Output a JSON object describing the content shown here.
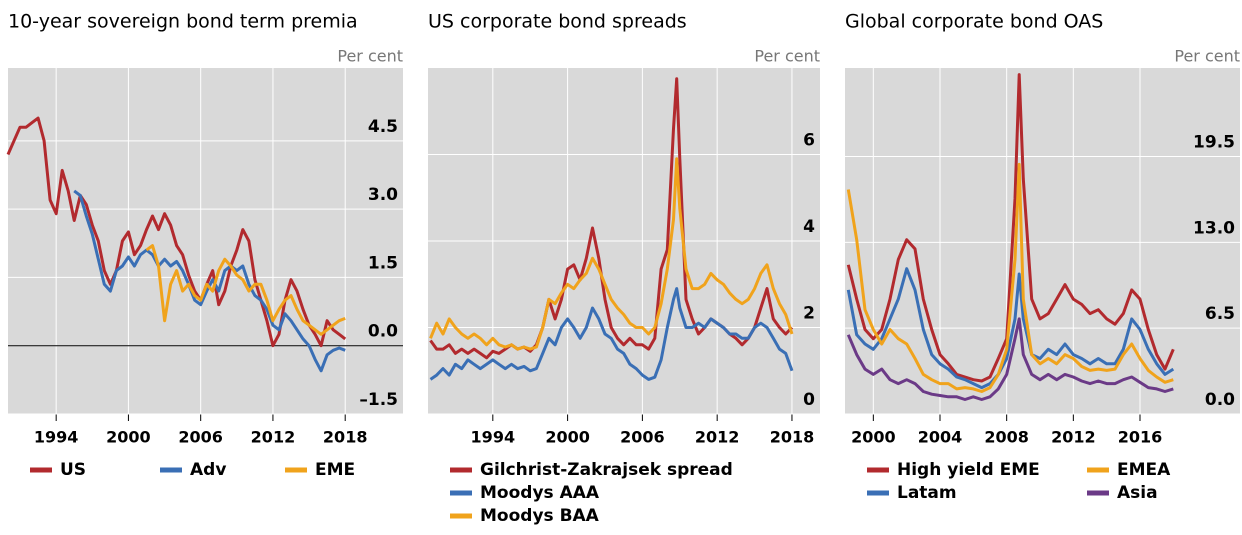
{
  "chart_data": [
    {
      "type": "line",
      "title": "10-year sovereign bond term premia",
      "unit": "Per cent",
      "x": [
        1990,
        1990.5,
        1991,
        1991.5,
        1992,
        1992.5,
        1993,
        1993.5,
        1994,
        1994.5,
        1995,
        1995.5,
        1996,
        1996.5,
        1997,
        1997.5,
        1998,
        1998.5,
        1999,
        1999.5,
        2000,
        2000.5,
        2001,
        2001.5,
        2002,
        2002.5,
        2003,
        2003.5,
        2004,
        2004.5,
        2005,
        2005.5,
        2006,
        2006.5,
        2007,
        2007.5,
        2008,
        2008.5,
        2009,
        2009.5,
        2010,
        2010.5,
        2011,
        2011.5,
        2012,
        2012.5,
        2013,
        2013.5,
        2014,
        2014.5,
        2015,
        2015.5,
        2016,
        2016.5,
        2017,
        2017.5,
        2018
      ],
      "series": [
        {
          "name": "US",
          "color": "#b22a2e",
          "values": [
            4.2,
            4.5,
            4.8,
            4.8,
            4.9,
            5.0,
            4.5,
            3.2,
            2.9,
            3.85,
            3.4,
            2.75,
            3.3,
            3.1,
            2.65,
            2.3,
            1.65,
            1.35,
            1.65,
            2.3,
            2.5,
            2.0,
            2.2,
            2.55,
            2.85,
            2.55,
            2.9,
            2.65,
            2.2,
            2.0,
            1.55,
            1.2,
            1.0,
            1.35,
            1.65,
            0.9,
            1.2,
            1.75,
            2.1,
            2.55,
            2.3,
            1.45,
            1.0,
            0.55,
            0.0,
            0.25,
            1.0,
            1.45,
            1.2,
            0.8,
            0.45,
            0.25,
            0.0,
            0.55,
            0.35,
            0.25,
            0.15
          ]
        },
        {
          "name": "Adv",
          "color": "#3a6fb5",
          "values": [
            null,
            null,
            null,
            null,
            null,
            null,
            null,
            null,
            null,
            null,
            null,
            3.4,
            3.3,
            2.85,
            2.45,
            1.9,
            1.35,
            1.2,
            1.65,
            1.75,
            1.95,
            1.75,
            2.0,
            2.1,
            2.0,
            1.75,
            1.9,
            1.75,
            1.85,
            1.65,
            1.35,
            1.0,
            0.9,
            1.2,
            1.45,
            1.2,
            1.65,
            1.75,
            1.65,
            1.75,
            1.35,
            1.1,
            1.0,
            0.8,
            0.45,
            0.35,
            0.7,
            0.55,
            0.35,
            0.15,
            0.0,
            -0.3,
            -0.55,
            -0.2,
            -0.1,
            -0.05,
            -0.1
          ]
        },
        {
          "name": "EME",
          "color": "#f0a31c",
          "values": [
            null,
            null,
            null,
            null,
            null,
            null,
            null,
            null,
            null,
            null,
            null,
            null,
            null,
            null,
            null,
            null,
            null,
            null,
            null,
            null,
            null,
            null,
            null,
            2.1,
            2.2,
            1.75,
            0.55,
            1.35,
            1.65,
            1.2,
            1.35,
            1.1,
            1.0,
            1.35,
            1.2,
            1.65,
            1.9,
            1.75,
            1.55,
            1.45,
            1.2,
            1.35,
            1.35,
            1.0,
            0.55,
            0.8,
            1.0,
            1.1,
            0.8,
            0.55,
            0.45,
            0.35,
            0.25,
            0.35,
            0.45,
            0.55,
            0.6
          ]
        }
      ],
      "xlim": [
        1990,
        2022.8
      ],
      "xticks": [
        1994,
        2000,
        2006,
        2012,
        2018
      ],
      "ylim": [
        -1.5,
        6.1
      ],
      "yticks": [
        {
          "value": -1.5,
          "label": "–1.5"
        },
        {
          "value": 0,
          "label": "0.0"
        },
        1.5,
        {
          "value": 3,
          "label": "3.0"
        },
        4.5
      ],
      "grid": true,
      "zero_line": true
    },
    {
      "type": "line",
      "title": "US corporate bond spreads",
      "unit": "Per cent",
      "x": [
        1989,
        1989.5,
        1990,
        1990.5,
        1991,
        1991.5,
        1992,
        1992.5,
        1993,
        1993.5,
        1994,
        1994.5,
        1995,
        1995.5,
        1996,
        1996.5,
        1997,
        1997.5,
        1998,
        1998.5,
        1999,
        1999.5,
        2000,
        2000.5,
        2001,
        2001.5,
        2002,
        2002.5,
        2003,
        2003.5,
        2004,
        2004.5,
        2005,
        2005.5,
        2006,
        2006.5,
        2007,
        2007.5,
        2008,
        2008.5,
        2008.75,
        2009,
        2009.5,
        2010,
        2010.5,
        2011,
        2011.5,
        2012,
        2012.5,
        2013,
        2013.5,
        2014,
        2014.5,
        2015,
        2015.5,
        2016,
        2016.5,
        2017,
        2017.5,
        2018
      ],
      "series": [
        {
          "name": "Gilchrist-Zakrajsek spread",
          "color": "#b22a2e",
          "values": [
            1.7,
            1.5,
            1.5,
            1.6,
            1.4,
            1.5,
            1.4,
            1.5,
            1.4,
            1.3,
            1.45,
            1.4,
            1.5,
            1.6,
            1.5,
            1.55,
            1.45,
            1.6,
            2.0,
            2.65,
            2.2,
            2.65,
            3.35,
            3.45,
            3.1,
            3.6,
            4.3,
            3.6,
            2.65,
            2.0,
            1.75,
            1.6,
            1.75,
            1.6,
            1.6,
            1.5,
            1.75,
            3.35,
            3.8,
            6.6,
            7.75,
            5.9,
            2.65,
            2.2,
            1.85,
            2.0,
            2.2,
            2.1,
            2.0,
            1.85,
            1.75,
            1.6,
            1.75,
            2.0,
            2.45,
            2.9,
            2.2,
            2.0,
            1.85,
            2.0
          ]
        },
        {
          "name": "Moodys AAA",
          "color": "#3a6fb5",
          "values": [
            0.8,
            0.9,
            1.05,
            0.9,
            1.15,
            1.05,
            1.25,
            1.15,
            1.05,
            1.15,
            1.25,
            1.15,
            1.05,
            1.15,
            1.05,
            1.1,
            1.0,
            1.05,
            1.4,
            1.75,
            1.6,
            2.0,
            2.2,
            2.0,
            1.75,
            2.0,
            2.45,
            2.2,
            1.85,
            1.75,
            1.5,
            1.4,
            1.15,
            1.05,
            0.9,
            0.8,
            0.85,
            1.25,
            2.0,
            2.65,
            2.9,
            2.45,
            2.0,
            2.0,
            2.1,
            2.0,
            2.2,
            2.1,
            2.0,
            1.85,
            1.85,
            1.75,
            1.75,
            2.0,
            2.1,
            2.0,
            1.75,
            1.5,
            1.4,
            1.0
          ]
        },
        {
          "name": "Moodys BAA",
          "color": "#f0a31c",
          "values": [
            1.75,
            2.1,
            1.85,
            2.2,
            2.0,
            1.85,
            1.75,
            1.85,
            1.75,
            1.6,
            1.75,
            1.6,
            1.55,
            1.6,
            1.5,
            1.55,
            1.5,
            1.55,
            2.0,
            2.65,
            2.55,
            2.8,
            3.0,
            2.9,
            3.1,
            3.25,
            3.6,
            3.35,
            3.0,
            2.65,
            2.45,
            2.3,
            2.1,
            2.0,
            2.0,
            1.85,
            2.0,
            2.55,
            3.35,
            4.5,
            5.9,
            4.75,
            3.35,
            2.9,
            2.9,
            3.0,
            3.25,
            3.1,
            3.0,
            2.8,
            2.65,
            2.55,
            2.65,
            2.9,
            3.25,
            3.45,
            2.9,
            2.55,
            2.3,
            1.85
          ]
        }
      ],
      "xlim": [
        1988.8,
        2020.25
      ],
      "xticks": [
        1994,
        2000,
        2006,
        2012,
        2018
      ],
      "ylim": [
        0,
        8
      ],
      "yticks": [
        0,
        2,
        4,
        6
      ],
      "grid": true
    },
    {
      "type": "line",
      "title": "Global corporate bond OAS",
      "unit": "Per cent",
      "x": [
        1998.5,
        1999,
        1999.5,
        2000,
        2000.5,
        2001,
        2001.5,
        2002,
        2002.5,
        2003,
        2003.5,
        2004,
        2004.5,
        2005,
        2005.5,
        2006,
        2006.5,
        2007,
        2007.5,
        2008,
        2008.5,
        2008.75,
        2009,
        2009.5,
        2010,
        2010.5,
        2011,
        2011.5,
        2012,
        2012.5,
        2013,
        2013.5,
        2014,
        2014.5,
        2015,
        2015.5,
        2016,
        2016.5,
        2017,
        2017.5,
        2018
      ],
      "series": [
        {
          "name": "High yield EME",
          "color": "#b22a2e",
          "values": [
            11.3,
            8.7,
            6.4,
            5.7,
            6.4,
            8.7,
            11.7,
            13.2,
            12.5,
            8.7,
            6.4,
            4.5,
            3.8,
            3.0,
            2.8,
            2.6,
            2.5,
            2.8,
            4.2,
            5.7,
            16.3,
            25.7,
            17.8,
            8.7,
            7.2,
            7.6,
            8.7,
            9.8,
            8.7,
            8.3,
            7.6,
            7.9,
            7.2,
            6.8,
            7.6,
            9.4,
            8.7,
            6.4,
            4.5,
            3.4,
            4.9
          ]
        },
        {
          "name": "Latam",
          "color": "#3a6fb5",
          "values": [
            9.4,
            6.0,
            5.3,
            4.9,
            5.7,
            7.2,
            8.7,
            11.0,
            9.4,
            6.4,
            4.5,
            3.8,
            3.4,
            2.8,
            2.6,
            2.3,
            2.0,
            2.3,
            3.0,
            4.2,
            7.2,
            10.6,
            7.2,
            4.5,
            4.2,
            4.9,
            4.5,
            5.3,
            4.5,
            4.2,
            3.8,
            4.2,
            3.8,
            3.8,
            4.9,
            7.2,
            6.4,
            4.9,
            3.8,
            3.0,
            3.4
          ]
        },
        {
          "name": "EMEA",
          "color": "#f0a31c",
          "values": [
            17.0,
            13.2,
            7.9,
            6.4,
            5.3,
            6.4,
            5.7,
            5.3,
            4.2,
            3.0,
            2.6,
            2.3,
            2.3,
            1.9,
            2.0,
            1.9,
            1.7,
            2.0,
            3.0,
            4.9,
            11.7,
            18.9,
            8.7,
            4.5,
            3.8,
            4.2,
            3.8,
            4.5,
            4.2,
            3.6,
            3.3,
            3.4,
            3.3,
            3.4,
            4.5,
            5.3,
            4.2,
            3.3,
            2.8,
            2.4,
            2.6
          ]
        },
        {
          "name": "Asia",
          "color": "#6b3a87",
          "values": [
            6.0,
            4.5,
            3.4,
            3.0,
            3.4,
            2.6,
            2.3,
            2.6,
            2.3,
            1.7,
            1.5,
            1.4,
            1.3,
            1.3,
            1.1,
            1.3,
            1.1,
            1.3,
            1.9,
            3.0,
            5.7,
            7.2,
            4.5,
            3.0,
            2.6,
            3.0,
            2.6,
            3.0,
            2.8,
            2.5,
            2.3,
            2.5,
            2.3,
            2.3,
            2.6,
            2.8,
            2.4,
            2.0,
            1.9,
            1.7,
            1.9
          ]
        }
      ],
      "xlim": [
        1998.3,
        2022
      ],
      "xticks": [
        2000,
        2004,
        2008,
        2012,
        2016
      ],
      "ylim": [
        0,
        26.2
      ],
      "yticks": [
        {
          "value": 0,
          "label": "0.0"
        },
        6.5,
        {
          "value": 13,
          "label": "13.0"
        },
        19.5
      ],
      "grid": true
    }
  ]
}
